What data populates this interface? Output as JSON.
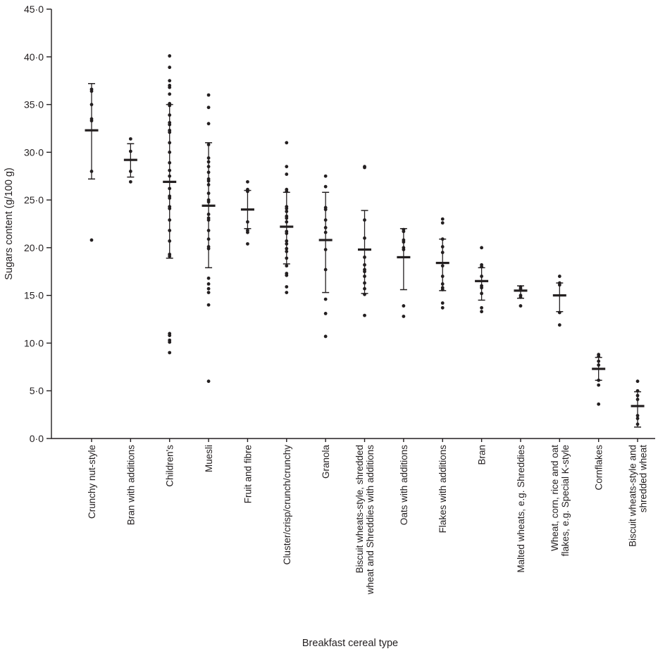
{
  "chart_data": {
    "type": "scatter",
    "title": "",
    "xlabel": "Breakfast cereal type",
    "ylabel": "Sugars content (g/100 g)",
    "ylim": [
      0,
      45
    ],
    "ytick_step": 5,
    "ytick_labels": [
      "0·0",
      "5·0",
      "10·0",
      "15·0",
      "20·0",
      "25·0",
      "30·0",
      "35·0",
      "40·0",
      "45·0"
    ],
    "grid": false,
    "legend": "none",
    "marker_color": "#231f20",
    "marker_style": "filled-dot-with-mean-bar-and-sd-error-bars",
    "categories": [
      {
        "label_lines": [
          "Crunchy nut-style"
        ],
        "mean": 32.3,
        "err_lo": 27.2,
        "err_hi": 37.2,
        "points": [
          36.6,
          36.4,
          35.0,
          33.5,
          33.3,
          28.0,
          20.8
        ]
      },
      {
        "label_lines": [
          "Bran with additions"
        ],
        "mean": 29.2,
        "err_lo": 27.4,
        "err_hi": 30.9,
        "points": [
          31.4,
          30.1,
          28.0,
          26.9
        ]
      },
      {
        "label_lines": [
          "Children's"
        ],
        "mean": 26.9,
        "err_lo": 18.9,
        "err_hi": 35.0,
        "points": [
          40.1,
          38.9,
          37.5,
          37.0,
          36.8,
          36.1,
          35.1,
          34.9,
          33.9,
          33.1,
          32.9,
          32.3,
          32.1,
          31.0,
          30.0,
          28.9,
          28.1,
          27.5,
          26.2,
          25.4,
          25.2,
          24.3,
          24.1,
          22.9,
          21.8,
          20.7,
          19.3,
          19.1,
          11.0,
          10.8,
          10.3,
          10.1,
          9.0
        ]
      },
      {
        "label_lines": [
          "Muesli"
        ],
        "mean": 24.4,
        "err_lo": 17.9,
        "err_hi": 31.0,
        "points": [
          36.0,
          34.7,
          33.0,
          30.8,
          29.4,
          29.0,
          28.5,
          27.9,
          27.2,
          27.0,
          26.6,
          25.7,
          25.0,
          24.8,
          23.5,
          23.1,
          22.9,
          21.8,
          20.9,
          20.1,
          19.9,
          16.8,
          16.2,
          15.7,
          15.3,
          14.0,
          6.0
        ]
      },
      {
        "label_lines": [
          "Fruit and fibre"
        ],
        "mean": 24.0,
        "err_lo": 22.0,
        "err_hi": 26.0,
        "points": [
          26.9,
          26.1,
          25.9,
          22.7,
          21.8,
          21.6,
          20.4
        ]
      },
      {
        "label_lines": [
          "Cluster/crisp/crunch/crunchy"
        ],
        "mean": 22.2,
        "err_lo": 18.3,
        "err_hi": 25.8,
        "points": [
          31.0,
          28.5,
          27.7,
          26.1,
          25.9,
          24.3,
          24.1,
          23.8,
          23.3,
          23.1,
          22.7,
          21.7,
          21.5,
          20.7,
          20.4,
          19.9,
          19.6,
          18.9,
          18.1,
          17.3,
          17.1,
          15.9,
          15.3
        ]
      },
      {
        "label_lines": [
          "Granola"
        ],
        "mean": 20.8,
        "err_lo": 15.3,
        "err_hi": 25.8,
        "points": [
          27.5,
          26.4,
          24.2,
          24.0,
          22.9,
          22.1,
          21.6,
          19.8,
          17.7,
          14.6,
          13.1,
          10.7
        ]
      },
      {
        "label_lines": [
          "Biscuit wheats-style, shredded",
          "wheat and Shreddies with additions"
        ],
        "mean": 19.8,
        "err_lo": 15.2,
        "err_hi": 23.9,
        "points": [
          28.5,
          28.4,
          22.9,
          21.0,
          19.0,
          18.2,
          17.7,
          17.5,
          17.0,
          16.3,
          15.7,
          15.1,
          12.9
        ]
      },
      {
        "label_lines": [
          "Oats with additions"
        ],
        "mean": 19.0,
        "err_lo": 15.6,
        "err_hi": 22.0,
        "points": [
          21.9,
          21.7,
          20.8,
          20.6,
          20.0,
          19.8,
          13.9,
          12.8
        ]
      },
      {
        "label_lines": [
          "Flakes with additions"
        ],
        "mean": 18.4,
        "err_lo": 15.5,
        "err_hi": 20.9,
        "points": [
          23.0,
          22.6,
          20.9,
          20.1,
          19.5,
          18.1,
          17.0,
          16.2,
          15.8,
          15.6,
          14.2,
          13.7
        ]
      },
      {
        "label_lines": [
          "Bran"
        ],
        "mean": 16.5,
        "err_lo": 14.5,
        "err_hi": 17.9,
        "points": [
          20.0,
          18.2,
          18.0,
          17.0,
          16.0,
          15.8,
          15.2,
          13.7,
          13.3
        ]
      },
      {
        "label_lines": [
          "Malted wheats, e.g. Shreddies"
        ],
        "mean": 15.5,
        "err_lo": 14.7,
        "err_hi": 16.0,
        "points": [
          15.9,
          15.7,
          15.0,
          14.8,
          13.9
        ]
      },
      {
        "label_lines": [
          "Wheat, corn, rice and oat",
          "flakes, e.g. Special K-style"
        ],
        "mean": 15.0,
        "err_lo": 13.3,
        "err_hi": 16.3,
        "points": [
          17.0,
          16.3,
          16.1,
          13.2,
          11.9
        ]
      },
      {
        "label_lines": [
          "Cornflakes"
        ],
        "mean": 7.3,
        "err_lo": 6.1,
        "err_hi": 8.5,
        "points": [
          8.8,
          8.6,
          8.1,
          7.7,
          6.1,
          5.6,
          3.6
        ]
      },
      {
        "label_lines": [
          "Biscuit wheats-style and",
          "shredded wheat"
        ],
        "mean": 3.4,
        "err_lo": 1.2,
        "err_hi": 4.9,
        "points": [
          6.0,
          5.0,
          4.5,
          4.1,
          2.4,
          2.1,
          1.5
        ]
      }
    ]
  }
}
